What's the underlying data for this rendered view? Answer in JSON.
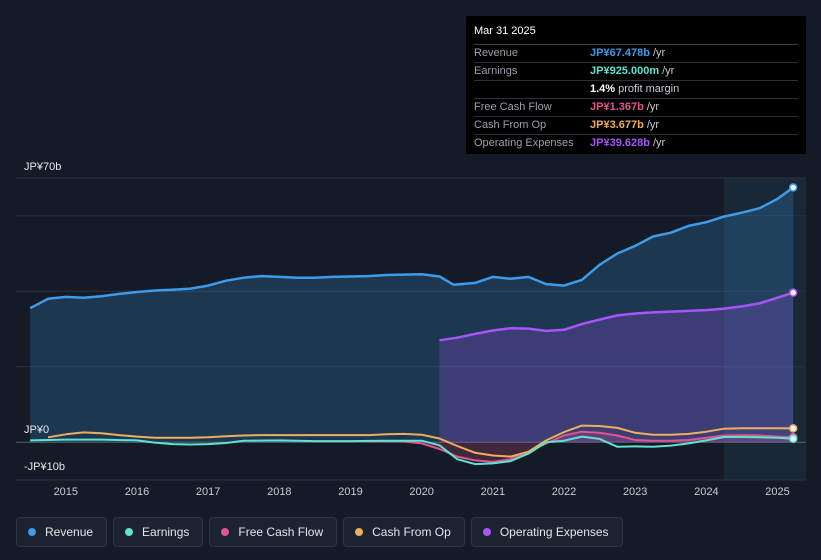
{
  "tooltip": {
    "date": "Mar 31 2025",
    "rows": [
      {
        "label": "Revenue",
        "value": "JP¥67.478b",
        "unit": "/yr",
        "color": "#3d9be9"
      },
      {
        "label": "Earnings",
        "value": "JP¥925.000m",
        "unit": "/yr",
        "color": "#5de3d0"
      },
      {
        "label": "",
        "value": "1.4%",
        "unit": "profit margin",
        "color": "#ffffff"
      },
      {
        "label": "Free Cash Flow",
        "value": "JP¥1.367b",
        "unit": "/yr",
        "color": "#e0548f"
      },
      {
        "label": "Cash From Op",
        "value": "JP¥3.677b",
        "unit": "/yr",
        "color": "#eeae5e"
      },
      {
        "label": "Operating Expenses",
        "value": "JP¥39.628b",
        "unit": "/yr",
        "color": "#a855f7"
      }
    ]
  },
  "legend": [
    {
      "label": "Revenue",
      "color": "#3d9be9"
    },
    {
      "label": "Earnings",
      "color": "#5de3d0"
    },
    {
      "label": "Free Cash Flow",
      "color": "#e0548f"
    },
    {
      "label": "Cash From Op",
      "color": "#eeae5e"
    },
    {
      "label": "Operating Expenses",
      "color": "#a855f7"
    }
  ],
  "chart_data": {
    "type": "area",
    "title": "",
    "xlabel": "",
    "ylabel": "",
    "unit": "JP¥ billions",
    "y_labels": {
      "top": "JP¥70b",
      "zero": "JP¥0",
      "bottom": "-JP¥10b"
    },
    "ylim": [
      -10,
      70
    ],
    "xlim": [
      2014.3,
      2025.4
    ],
    "x_ticks": [
      2015,
      2016,
      2017,
      2018,
      2019,
      2020,
      2021,
      2022,
      2023,
      2024,
      2025
    ],
    "x_tick_labels": [
      "2015",
      "2016",
      "2017",
      "2018",
      "2019",
      "2020",
      "2021",
      "2022",
      "2023",
      "2024",
      "2025"
    ],
    "highlight_from": 2024.25,
    "series": [
      {
        "name": "Revenue",
        "color": "#3d9be9",
        "filled": true,
        "points": [
          [
            2014.5,
            35.5
          ],
          [
            2014.75,
            38
          ],
          [
            2015.0,
            38.5
          ],
          [
            2015.25,
            38.3
          ],
          [
            2015.5,
            38.7
          ],
          [
            2015.75,
            39.3
          ],
          [
            2016.0,
            39.8
          ],
          [
            2016.25,
            40.2
          ],
          [
            2016.5,
            40.4
          ],
          [
            2016.75,
            40.7
          ],
          [
            2017.0,
            41.5
          ],
          [
            2017.25,
            42.8
          ],
          [
            2017.5,
            43.6
          ],
          [
            2017.75,
            44
          ],
          [
            2018.0,
            43.8
          ],
          [
            2018.25,
            43.6
          ],
          [
            2018.5,
            43.6
          ],
          [
            2018.75,
            43.8
          ],
          [
            2019.0,
            43.9
          ],
          [
            2019.25,
            44
          ],
          [
            2019.5,
            44.3
          ],
          [
            2019.75,
            44.4
          ],
          [
            2020.0,
            44.5
          ],
          [
            2020.25,
            43.9
          ],
          [
            2020.45,
            41.7
          ],
          [
            2020.75,
            42.2
          ],
          [
            2021.0,
            43.8
          ],
          [
            2021.25,
            43.3
          ],
          [
            2021.5,
            43.8
          ],
          [
            2021.75,
            41.9
          ],
          [
            2022.0,
            41.5
          ],
          [
            2022.25,
            43
          ],
          [
            2022.5,
            47
          ],
          [
            2022.75,
            50
          ],
          [
            2023.0,
            52
          ],
          [
            2023.25,
            54.5
          ],
          [
            2023.5,
            55.5
          ],
          [
            2023.75,
            57.3
          ],
          [
            2024.0,
            58.3
          ],
          [
            2024.25,
            59.8
          ],
          [
            2024.5,
            60.8
          ],
          [
            2024.75,
            62
          ],
          [
            2025.0,
            64.5
          ],
          [
            2025.22,
            67.478
          ]
        ]
      },
      {
        "name": "Operating Expenses",
        "color": "#a855f7",
        "filled": true,
        "points": [
          [
            2020.25,
            27
          ],
          [
            2020.5,
            27.7
          ],
          [
            2020.75,
            28.7
          ],
          [
            2021.0,
            29.6
          ],
          [
            2021.25,
            30.2
          ],
          [
            2021.5,
            30.1
          ],
          [
            2021.75,
            29.5
          ],
          [
            2022.0,
            29.8
          ],
          [
            2022.25,
            31.3
          ],
          [
            2022.5,
            32.5
          ],
          [
            2022.75,
            33.6
          ],
          [
            2023.0,
            34.1
          ],
          [
            2023.25,
            34.4
          ],
          [
            2023.5,
            34.6
          ],
          [
            2023.75,
            34.8
          ],
          [
            2024.0,
            35
          ],
          [
            2024.25,
            35.4
          ],
          [
            2024.5,
            36
          ],
          [
            2024.75,
            36.8
          ],
          [
            2025.0,
            38.3
          ],
          [
            2025.22,
            39.628
          ]
        ]
      },
      {
        "name": "Free Cash Flow",
        "color": "#e0548f",
        "filled": true,
        "points": [
          [
            2019.25,
            0.3
          ],
          [
            2019.5,
            0.3
          ],
          [
            2019.75,
            0.2
          ],
          [
            2020.0,
            -0.3
          ],
          [
            2020.25,
            -1.8
          ],
          [
            2020.5,
            -3.8
          ],
          [
            2020.75,
            -4.8
          ],
          [
            2021.0,
            -5.2
          ],
          [
            2021.25,
            -4.5
          ],
          [
            2021.5,
            -2.5
          ],
          [
            2021.75,
            -0.3
          ],
          [
            2022.0,
            1.8
          ],
          [
            2022.25,
            2.8
          ],
          [
            2022.5,
            2.5
          ],
          [
            2022.75,
            1.8
          ],
          [
            2023.0,
            0.6
          ],
          [
            2023.25,
            0.4
          ],
          [
            2023.5,
            0.4
          ],
          [
            2023.75,
            0.6
          ],
          [
            2024.0,
            1.2
          ],
          [
            2024.25,
            1.8
          ],
          [
            2024.5,
            1.9
          ],
          [
            2024.75,
            1.8
          ],
          [
            2025.0,
            1.5
          ],
          [
            2025.22,
            1.367
          ]
        ]
      },
      {
        "name": "Cash From Op",
        "color": "#eeae5e",
        "filled": false,
        "points": [
          [
            2014.75,
            1.3
          ],
          [
            2015.0,
            2.1
          ],
          [
            2015.25,
            2.6
          ],
          [
            2015.5,
            2.4
          ],
          [
            2015.75,
            1.9
          ],
          [
            2016.0,
            1.5
          ],
          [
            2016.25,
            1.2
          ],
          [
            2016.5,
            1.2
          ],
          [
            2016.75,
            1.2
          ],
          [
            2017.0,
            1.3
          ],
          [
            2017.25,
            1.6
          ],
          [
            2017.5,
            1.8
          ],
          [
            2017.75,
            1.9
          ],
          [
            2018.0,
            1.9
          ],
          [
            2018.5,
            1.9
          ],
          [
            2019.0,
            1.9
          ],
          [
            2019.25,
            1.9
          ],
          [
            2019.5,
            2.1
          ],
          [
            2019.75,
            2.2
          ],
          [
            2020.0,
            2
          ],
          [
            2020.25,
            1
          ],
          [
            2020.5,
            -1
          ],
          [
            2020.75,
            -2.8
          ],
          [
            2021.0,
            -3.5
          ],
          [
            2021.25,
            -3.8
          ],
          [
            2021.5,
            -2.5
          ],
          [
            2021.75,
            0.5
          ],
          [
            2022.0,
            2.7
          ],
          [
            2022.25,
            4.4
          ],
          [
            2022.5,
            4.3
          ],
          [
            2022.75,
            3.8
          ],
          [
            2023.0,
            2.5
          ],
          [
            2023.25,
            2
          ],
          [
            2023.5,
            2
          ],
          [
            2023.75,
            2.2
          ],
          [
            2024.0,
            2.8
          ],
          [
            2024.25,
            3.6
          ],
          [
            2024.5,
            3.7
          ],
          [
            2024.75,
            3.7
          ],
          [
            2025.0,
            3.7
          ],
          [
            2025.22,
            3.677
          ]
        ]
      },
      {
        "name": "Earnings",
        "color": "#5de3d0",
        "filled": false,
        "points": [
          [
            2014.5,
            0.5
          ],
          [
            2015.0,
            0.7
          ],
          [
            2015.5,
            0.7
          ],
          [
            2016.0,
            0.5
          ],
          [
            2016.25,
            -0.1
          ],
          [
            2016.5,
            -0.5
          ],
          [
            2016.75,
            -0.6
          ],
          [
            2017.0,
            -0.5
          ],
          [
            2017.25,
            -0.2
          ],
          [
            2017.5,
            0.4
          ],
          [
            2018.0,
            0.5
          ],
          [
            2018.5,
            0.3
          ],
          [
            2019.0,
            0.3
          ],
          [
            2019.5,
            0.4
          ],
          [
            2020.0,
            0.4
          ],
          [
            2020.25,
            -0.8
          ],
          [
            2020.5,
            -4.5
          ],
          [
            2020.75,
            -5.8
          ],
          [
            2021.0,
            -5.6
          ],
          [
            2021.25,
            -5
          ],
          [
            2021.5,
            -3
          ],
          [
            2021.75,
            0
          ],
          [
            2022.0,
            0.4
          ],
          [
            2022.25,
            1.5
          ],
          [
            2022.5,
            0.9
          ],
          [
            2022.75,
            -1.2
          ],
          [
            2023.0,
            -1.1
          ],
          [
            2023.25,
            -1.2
          ],
          [
            2023.5,
            -0.9
          ],
          [
            2023.75,
            -0.3
          ],
          [
            2024.0,
            0.5
          ],
          [
            2024.25,
            1.4
          ],
          [
            2024.5,
            1.4
          ],
          [
            2024.75,
            1.3
          ],
          [
            2025.0,
            1.2
          ],
          [
            2025.22,
            0.925
          ]
        ]
      }
    ]
  }
}
